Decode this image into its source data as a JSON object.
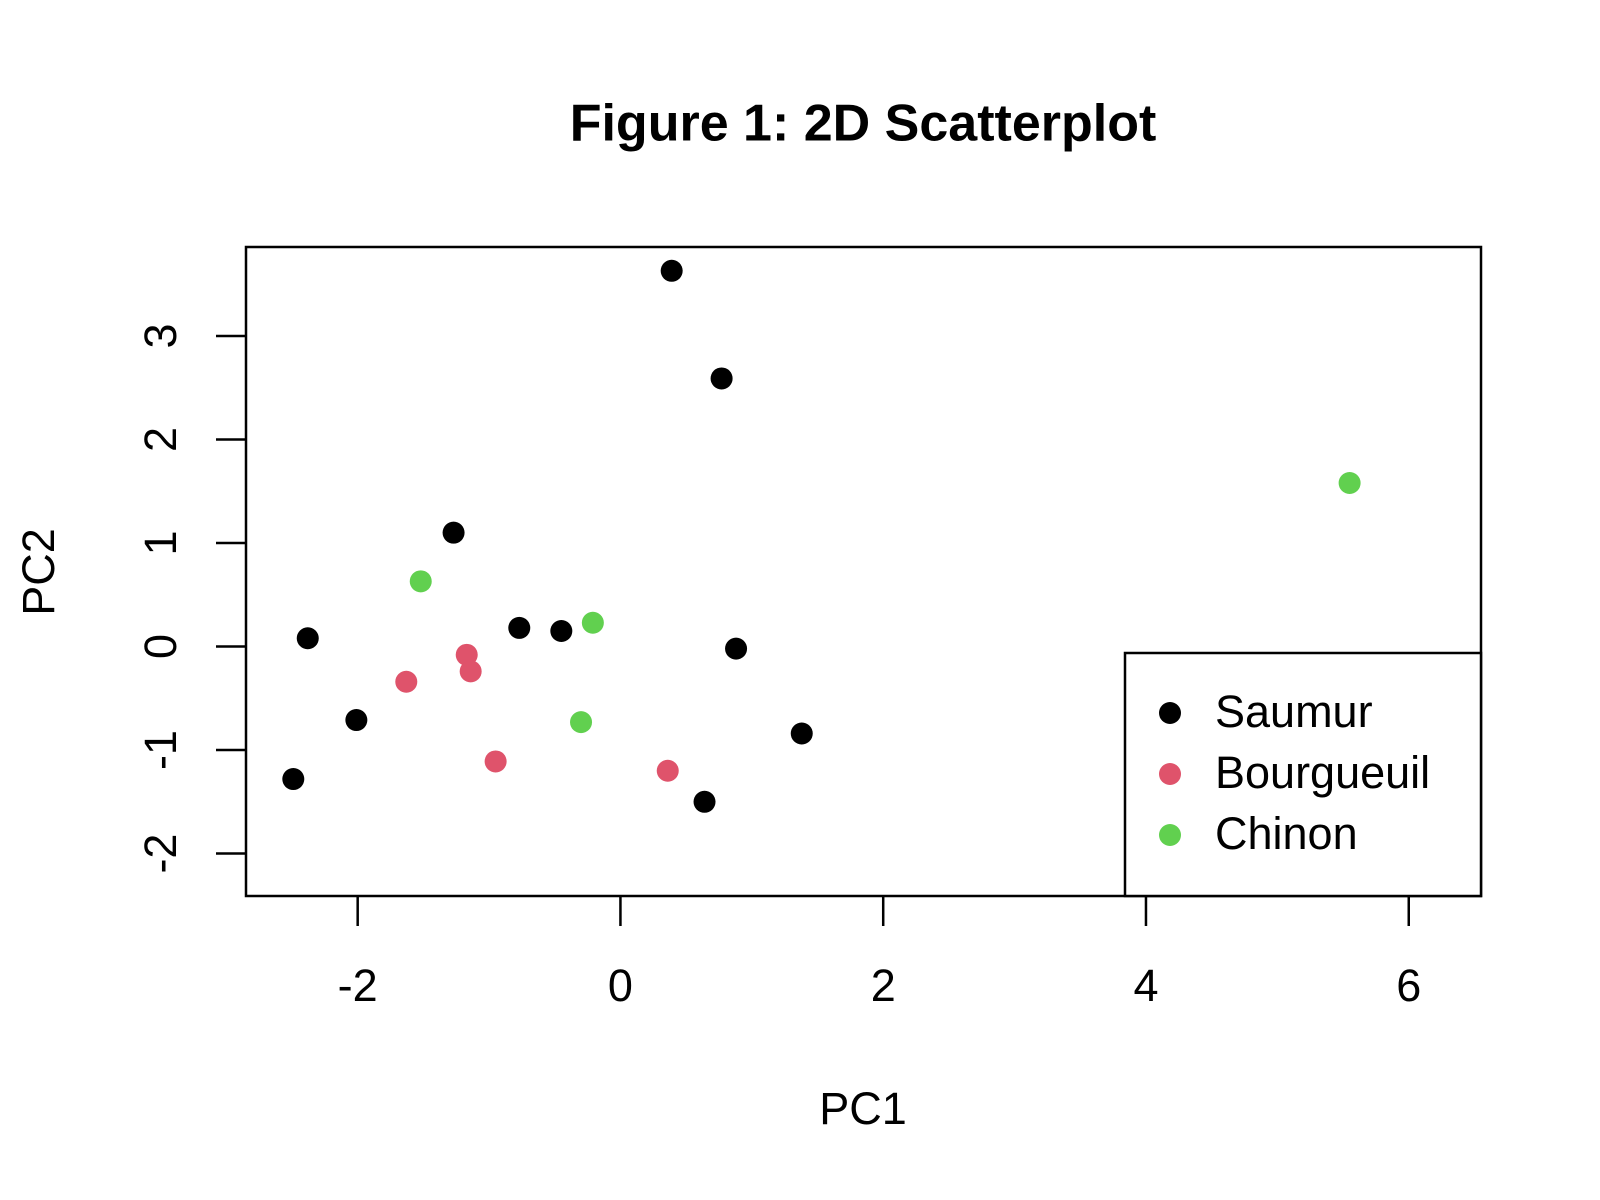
{
  "chart_data": {
    "type": "scatter",
    "title": "Figure 1: 2D Scatterplot",
    "x_label": "PC1",
    "y_label": "PC2",
    "xlim": [
      -2.85,
      6.55
    ],
    "ylim": [
      -2.41,
      3.86
    ],
    "xticks": [
      -2,
      0,
      2,
      4,
      6
    ],
    "yticks": [
      -2,
      -1,
      0,
      1,
      2,
      3
    ],
    "legend": "bottomright",
    "series": [
      {
        "name": "Saumur",
        "color": "#000000",
        "x": [
          0.39,
          0.77,
          -1.27,
          -2.38,
          -0.77,
          -0.45,
          0.88,
          -2.01,
          1.38,
          -2.49,
          0.64
        ],
        "y": [
          3.63,
          2.59,
          1.1,
          0.08,
          0.18,
          0.15,
          -0.02,
          -0.71,
          -0.84,
          -1.28,
          -1.5
        ]
      },
      {
        "name": "Bourgueuil",
        "color": "#DF536B",
        "x": [
          -1.63,
          -1.17,
          -1.14,
          -0.95,
          0.36
        ],
        "y": [
          -0.34,
          -0.08,
          -0.24,
          -1.11,
          -1.2
        ]
      },
      {
        "name": "Chinon",
        "color": "#61D04F",
        "x": [
          -1.52,
          -0.21,
          -0.3,
          5.55
        ],
        "y": [
          0.63,
          0.23,
          -0.73,
          1.58
        ]
      }
    ]
  }
}
